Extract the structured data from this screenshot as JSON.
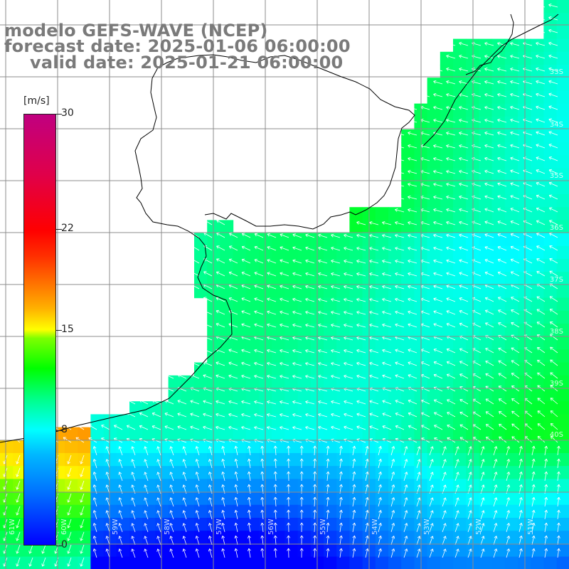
{
  "title": {
    "line1": "modelo GEFS-WAVE (NCEP)",
    "line2": "forecast date: 2025-01-06 06:00:00",
    "line3": "valid date: 2025-01-21 06:00:00"
  },
  "colorbar": {
    "units": "[m/s]",
    "ticks": [
      {
        "value": 30,
        "label": "30"
      },
      {
        "value": 22,
        "label": "22"
      },
      {
        "value": 15,
        "label": "15"
      },
      {
        "value": 8,
        "label": "8"
      },
      {
        "value": 0,
        "label": "0"
      }
    ],
    "range": [
      0,
      30
    ]
  },
  "map": {
    "longitude_labels": [
      "61W",
      "60W",
      "59W",
      "58W",
      "57W",
      "56W",
      "55W",
      "54W",
      "53W",
      "52W",
      "51W"
    ],
    "latitude_labels": [
      "33S",
      "34S",
      "35S",
      "36S",
      "37S",
      "38S",
      "39S",
      "40S"
    ],
    "colors": {
      "land": "#ffffff",
      "coast": "#000000",
      "grid": "#8c8c8c",
      "arrow": "#ffffff"
    }
  }
}
